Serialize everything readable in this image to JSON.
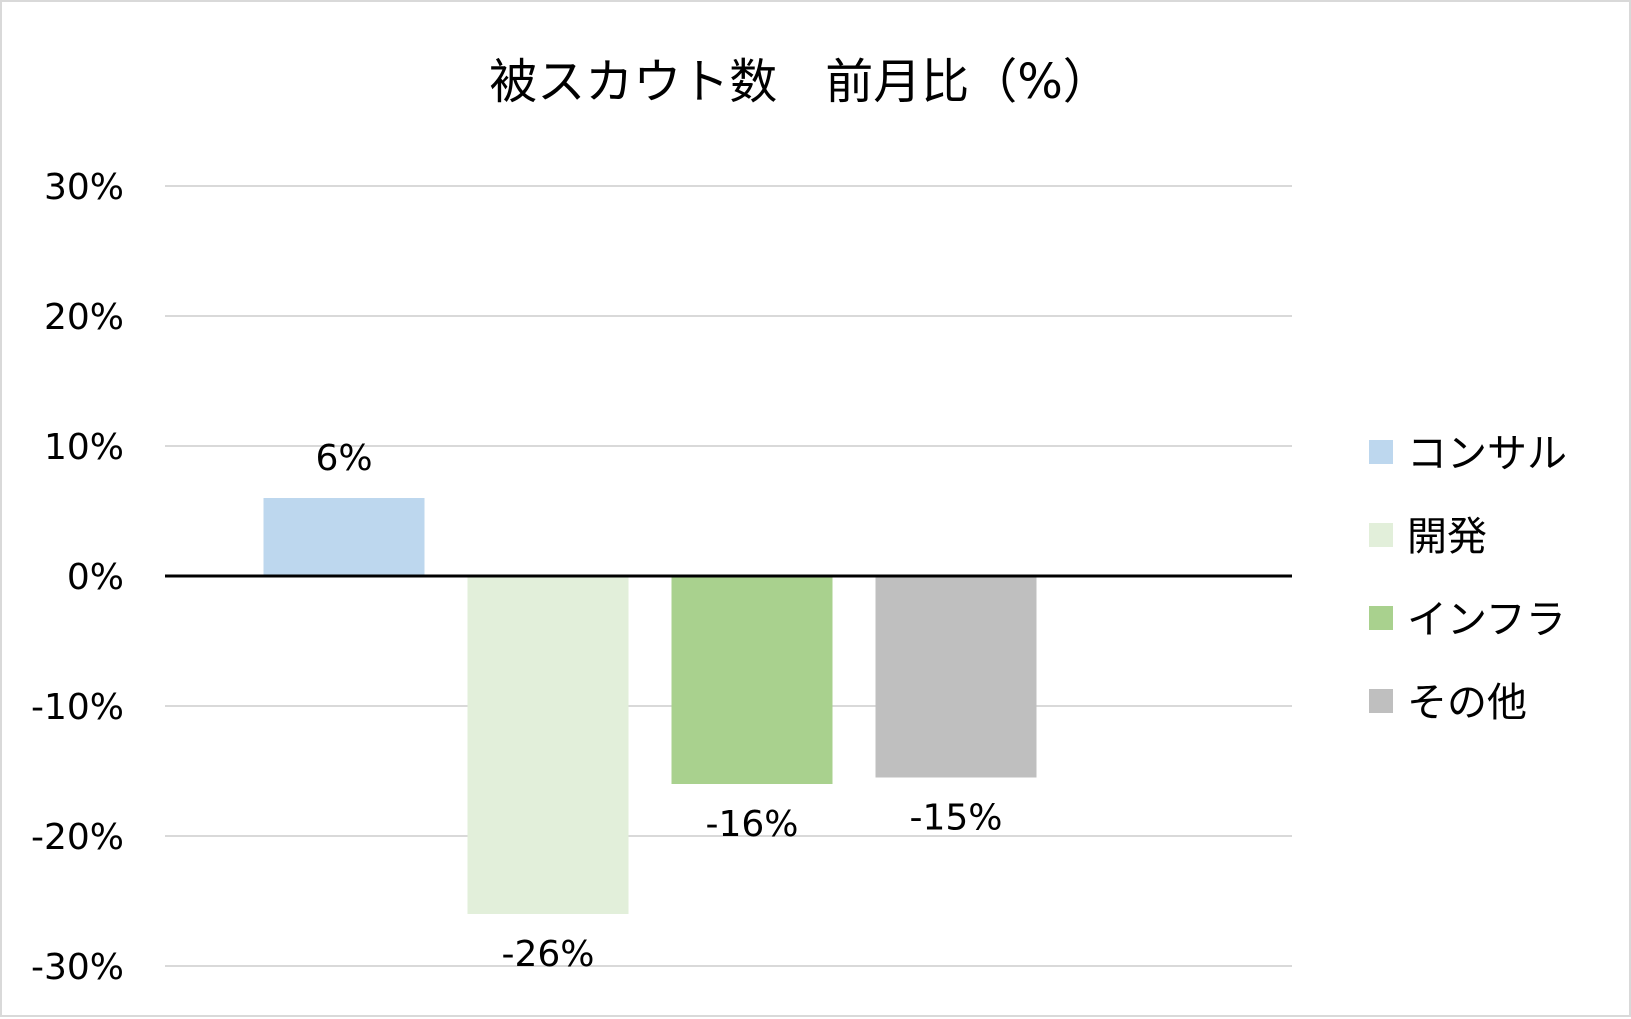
{
  "chart_data": {
    "type": "bar",
    "title": "被スカウト数　前月比（%）",
    "xlabel": "",
    "ylabel": "",
    "ylim": [
      -0.3,
      0.3
    ],
    "yticks": [
      0.3,
      0.2,
      0.1,
      0,
      -0.1,
      -0.2,
      -0.3
    ],
    "ytick_labels": [
      "30%",
      "20%",
      "10%",
      "0%",
      "-10%",
      "-20%",
      "-30%"
    ],
    "grid": true,
    "legend_position": "right",
    "series": [
      {
        "name": "コンサル",
        "value": 0.06,
        "label": "6%",
        "color": "#bdd7ee"
      },
      {
        "name": "開発",
        "value": -0.26,
        "label": "-26%",
        "color": "#e2efda"
      },
      {
        "name": "インフラ",
        "value": -0.16,
        "label": "-16%",
        "color": "#a9d18e"
      },
      {
        "name": "その他",
        "value": -0.155,
        "label": "-15%",
        "color": "#bfbfbf"
      }
    ]
  }
}
